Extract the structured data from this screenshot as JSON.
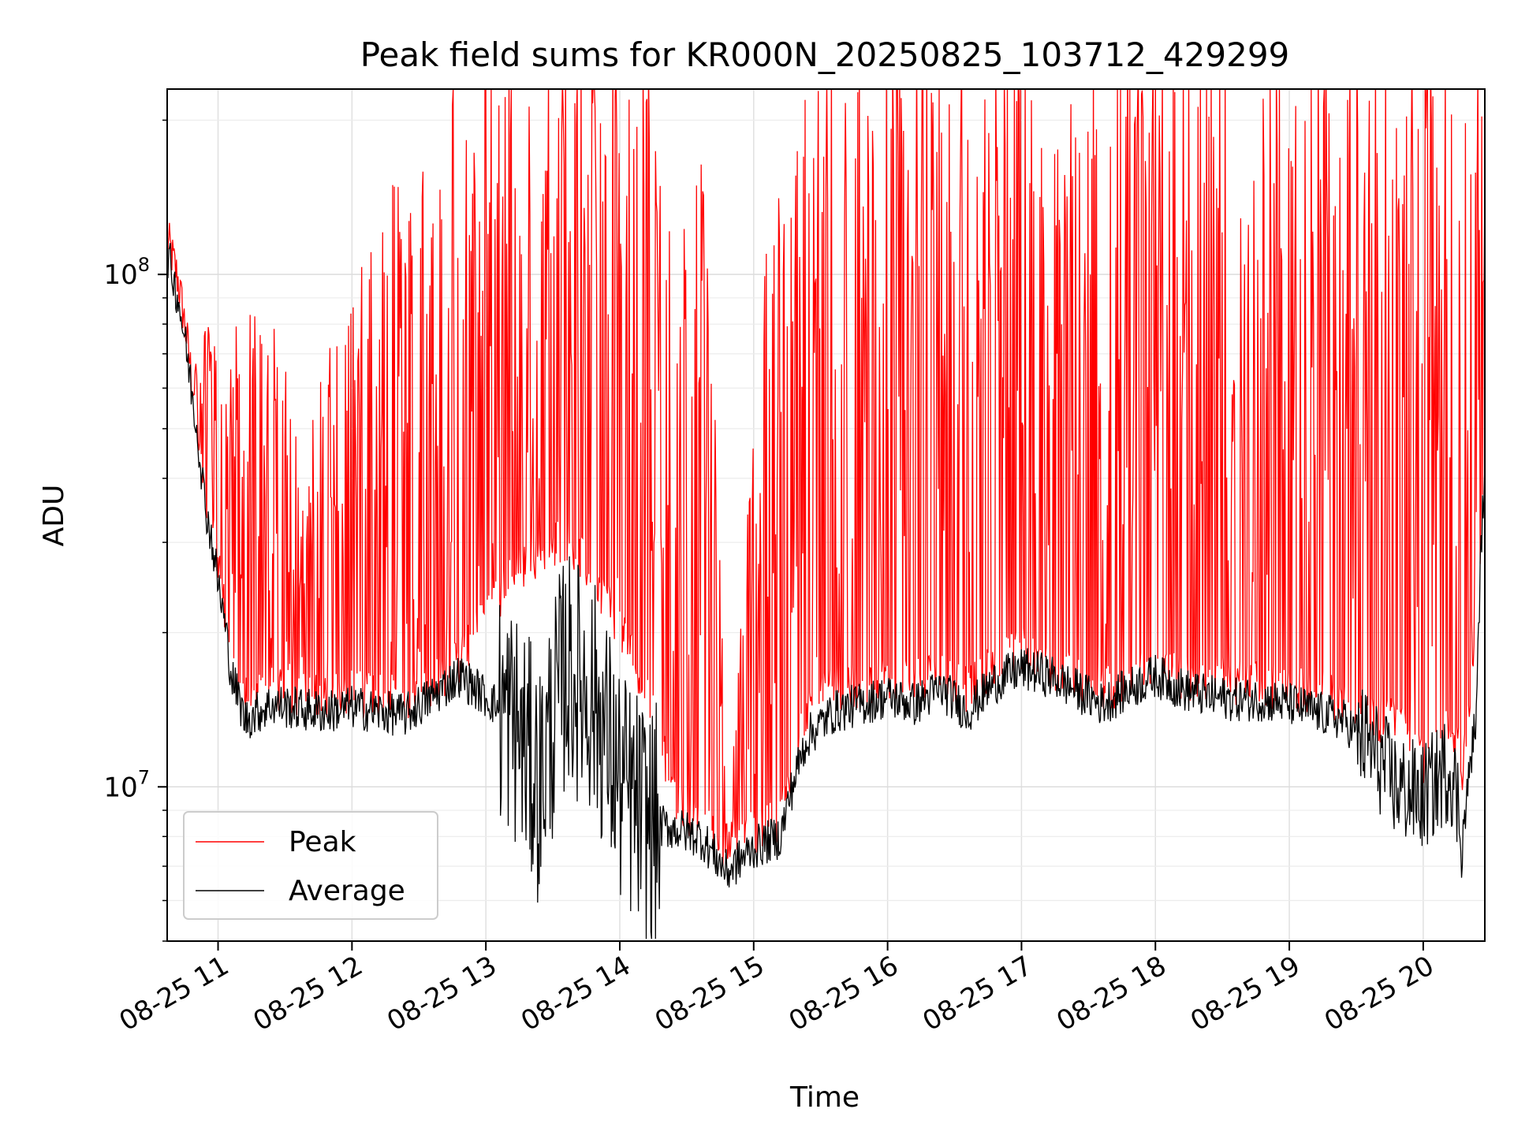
{
  "chart_data": {
    "type": "line",
    "title": "Peak field sums for KR000N_20250825_103712_429299",
    "xlabel": "Time",
    "ylabel": "ADU",
    "yscale": "log",
    "grid": true,
    "legend_position": "lower-left",
    "x_start": "2025-08-25 10:37",
    "x_end": "2025-08-25 20:27",
    "xlim_hours": [
      10.62,
      20.46
    ],
    "ylim": [
      5000000,
      230000000
    ],
    "x_ticks": [
      11,
      12,
      13,
      14,
      15,
      16,
      17,
      18,
      19,
      20
    ],
    "x_tick_labels": [
      "08-25 11",
      "08-25 12",
      "08-25 13",
      "08-25 14",
      "08-25 15",
      "08-25 16",
      "08-25 17",
      "08-25 18",
      "08-25 19",
      "08-25 20"
    ],
    "y_ticks": [
      10000000,
      100000000
    ],
    "y_tick_labels": [
      {
        "base": "10",
        "exp": "7"
      },
      {
        "base": "10",
        "exp": "8"
      }
    ],
    "series": [
      {
        "name": "Peak",
        "color": "#ff0000",
        "x_hours": [
          10.62,
          10.7,
          10.8,
          10.9,
          11.0,
          11.1,
          11.2,
          11.4,
          11.6,
          11.8,
          12.0,
          12.2,
          12.4,
          12.6,
          12.8,
          13.0,
          13.2,
          13.4,
          13.6,
          13.8,
          14.0,
          14.2,
          14.4,
          14.6,
          14.8,
          15.0,
          15.2,
          15.4,
          15.6,
          15.8,
          16.0,
          16.2,
          16.4,
          16.6,
          16.8,
          17.0,
          17.2,
          17.4,
          17.6,
          17.8,
          18.0,
          18.2,
          18.4,
          18.6,
          18.8,
          19.0,
          19.2,
          19.4,
          19.6,
          19.8,
          20.0,
          20.2,
          20.3,
          20.4,
          20.46
        ],
        "baseline": [
          115000000,
          95000000,
          62000000,
          38000000,
          26000000,
          17000000,
          14500000,
          15000000,
          14800000,
          14500000,
          14800000,
          14700000,
          14500000,
          15500000,
          17000000,
          21000000,
          25000000,
          28000000,
          30000000,
          25000000,
          20000000,
          15000000,
          9500000,
          8200000,
          7500000,
          8000000,
          8500000,
          14000000,
          15000000,
          15500000,
          16000000,
          16000000,
          16500000,
          15000000,
          17000000,
          18000000,
          17000000,
          16000000,
          15000000,
          16000000,
          17000000,
          16000000,
          16000000,
          15500000,
          15500000,
          15000000,
          15000000,
          14500000,
          13000000,
          13500000,
          11000000,
          13000000,
          10500000,
          20000000,
          42000000
        ],
        "spike_level": [
          0,
          0,
          50000000,
          70000000,
          60000000,
          60000000,
          80000000,
          70000000,
          40000000,
          60000000,
          80000000,
          100000000,
          180000000,
          230000000,
          230000000,
          230000000,
          230000000,
          230000000,
          230000000,
          230000000,
          230000000,
          230000000,
          80000000,
          150000000,
          0,
          40000000,
          150000000,
          200000000,
          230000000,
          230000000,
          230000000,
          230000000,
          230000000,
          230000000,
          230000000,
          230000000,
          230000000,
          230000000,
          230000000,
          230000000,
          230000000,
          230000000,
          230000000,
          230000000,
          230000000,
          230000000,
          230000000,
          230000000,
          230000000,
          230000000,
          230000000,
          230000000,
          230000000,
          230000000,
          150000000
        ]
      },
      {
        "name": "Average",
        "color": "#000000",
        "x_hours": [
          10.62,
          10.7,
          10.8,
          10.9,
          11.0,
          11.1,
          11.2,
          11.4,
          11.6,
          11.8,
          12.0,
          12.2,
          12.4,
          12.6,
          12.8,
          13.0,
          13.2,
          13.4,
          13.6,
          13.8,
          14.0,
          14.2,
          14.4,
          14.6,
          14.8,
          15.0,
          15.2,
          15.4,
          15.6,
          15.8,
          16.0,
          16.2,
          16.4,
          16.6,
          16.8,
          17.0,
          17.2,
          17.4,
          17.6,
          17.8,
          18.0,
          18.2,
          18.4,
          18.6,
          18.8,
          19.0,
          19.2,
          19.4,
          19.6,
          19.8,
          20.0,
          20.2,
          20.3,
          20.4,
          20.46
        ],
        "values": [
          110000000,
          90000000,
          60000000,
          36000000,
          25000000,
          16500000,
          13500000,
          14500000,
          14200000,
          14000000,
          14300000,
          14000000,
          13800000,
          15000000,
          16500000,
          15000000,
          13500000,
          10000000,
          17000000,
          15000000,
          10000000,
          8500000,
          8300000,
          8000000,
          6800000,
          7600000,
          8000000,
          12500000,
          14000000,
          14500000,
          15000000,
          14500000,
          15500000,
          14000000,
          16000000,
          17000000,
          16500000,
          15500000,
          14500000,
          15500000,
          16500000,
          15500000,
          15000000,
          14800000,
          14800000,
          14500000,
          14000000,
          13500000,
          12000000,
          10000000,
          9500000,
          11000000,
          8000000,
          14000000,
          42000000
        ]
      }
    ]
  }
}
